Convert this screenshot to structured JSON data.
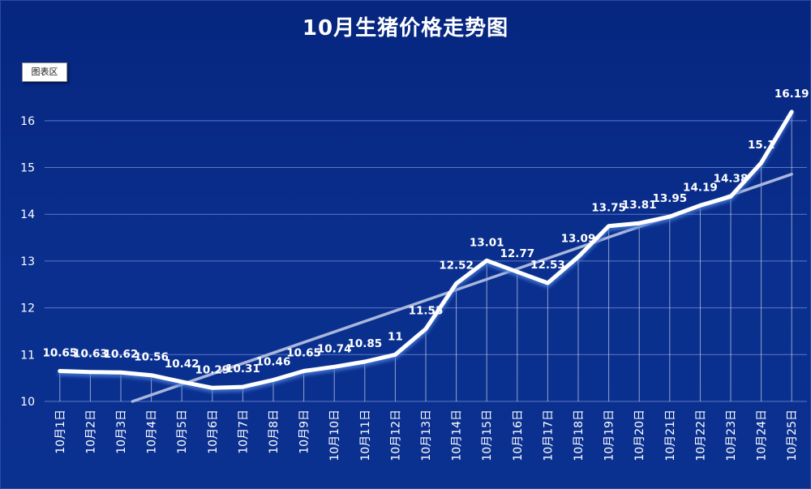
{
  "chart_data": {
    "type": "line",
    "title": "10月生猪价格走势图",
    "area_tag": "图表区",
    "categories": [
      "10月1日",
      "10月2日",
      "10月3日",
      "10月4日",
      "10月5日",
      "10月6日",
      "10月7日",
      "10月8日",
      "10月9日",
      "10月10日",
      "10月11日",
      "10月12日",
      "10月13日",
      "10月14日",
      "10月15日",
      "10月16日",
      "10月17日",
      "10月18日",
      "10月19日",
      "10月20日",
      "10月21日",
      "10月22日",
      "10月23日",
      "10月24日",
      "10月25日"
    ],
    "values": [
      10.65,
      10.63,
      10.62,
      10.56,
      10.42,
      10.29,
      10.31,
      10.46,
      10.65,
      10.74,
      10.85,
      11,
      11.55,
      12.52,
      13.01,
      12.77,
      12.53,
      13.09,
      13.75,
      13.81,
      13.95,
      14.19,
      14.38,
      15.1,
      16.19
    ],
    "ylim": [
      10,
      16.5
    ],
    "yticks": [
      10,
      11,
      12,
      13,
      14,
      15,
      16
    ],
    "trendline": true,
    "grid": true,
    "colors": {
      "line": "#ffffff",
      "trend": "#a9b6dc",
      "grid": "#5d77c4",
      "background": "#0a2f8e"
    }
  }
}
